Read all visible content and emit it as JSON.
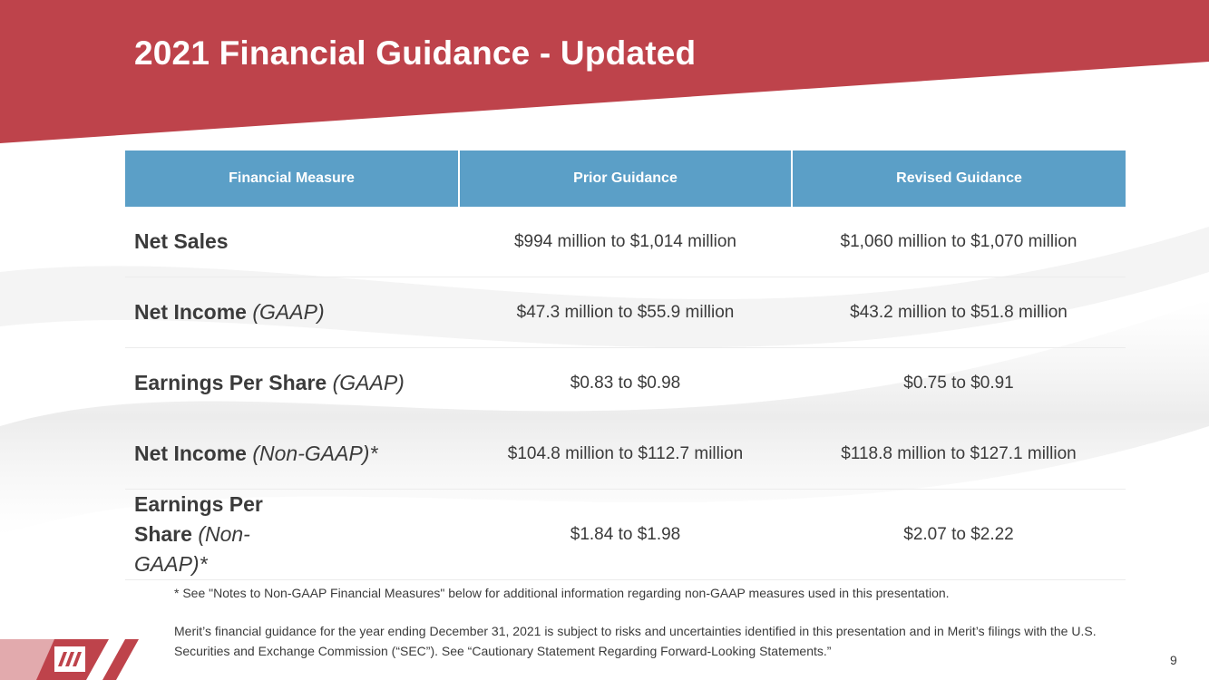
{
  "slide": {
    "title": "2021 Financial Guidance - Updated",
    "page_number": "9",
    "brand_color": "#be434b",
    "header_color": "#5b9fc7"
  },
  "table": {
    "headers": [
      "Financial Measure",
      "Prior Guidance",
      "Revised Guidance"
    ],
    "rows": [
      {
        "measure": "Net Sales",
        "qualifier": "",
        "prior": "$994 million to $1,014 million",
        "revised": "$1,060 million to $1,070 million"
      },
      {
        "measure": "Net Income",
        "qualifier": "(GAAP)",
        "prior": "$47.3 million to $55.9 million",
        "revised": "$43.2 million to $51.8 million"
      },
      {
        "measure": "Earnings Per Share",
        "qualifier": "(GAAP)",
        "prior": "$0.83 to $0.98",
        "revised": "$0.75 to $0.91"
      },
      {
        "measure": "Net Income",
        "qualifier": "(Non-GAAP)*",
        "prior": "$104.8 million to $112.7 million",
        "revised": "$118.8 million to $127.1 million"
      },
      {
        "measure": "Earnings Per Share",
        "qualifier": "(Non-GAAP)*",
        "prior": "$1.84 to $1.98",
        "revised": "$2.07 to $2.22"
      }
    ]
  },
  "notes": {
    "footnote": "* See \"Notes to Non-GAAP Financial Measures\" below for additional information regarding non-GAAP measures used in this presentation.",
    "disclaimer": "Merit’s financial guidance for the year ending December 31, 2021 is subject to risks and uncertainties identified in this presentation and in Merit’s filings with the U.S. Securities and Exchange Commission (“SEC”). See “Cautionary Statement Regarding Forward-Looking Statements.”"
  }
}
